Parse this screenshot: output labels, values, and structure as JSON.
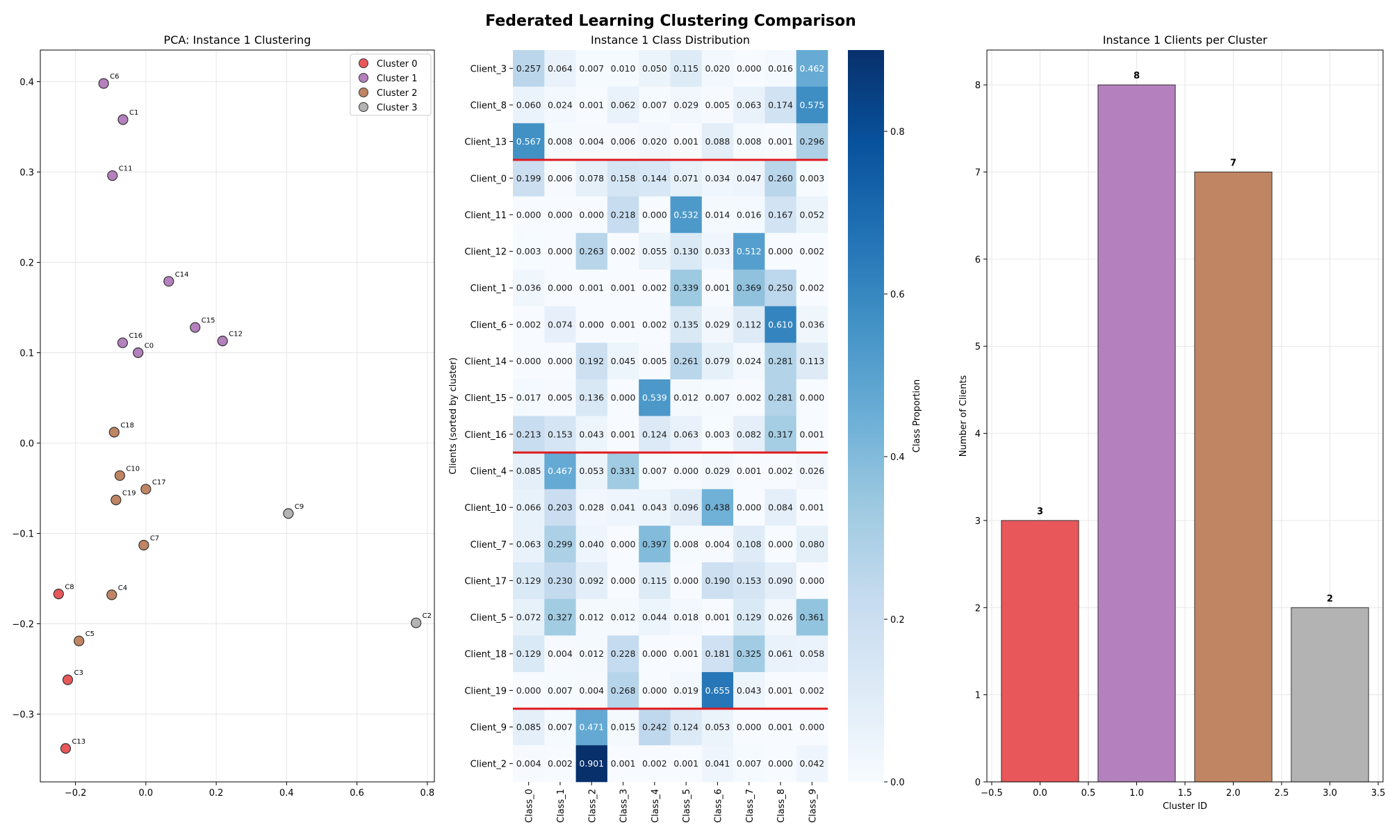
{
  "figure_title": "Federated Learning Clustering Comparison",
  "cluster_colors": [
    "#e8575a",
    "#b480bd",
    "#c08562",
    "#b3b3b3"
  ],
  "chart_data": [
    {
      "type": "scatter",
      "title": "PCA: Instance 1 Clustering",
      "xlabel": "",
      "ylabel": "",
      "xlim": [
        -0.3,
        0.82
      ],
      "ylim": [
        -0.375,
        0.435
      ],
      "xticks": [
        -0.2,
        0.0,
        0.2,
        0.4,
        0.6,
        0.8
      ],
      "xtick_labels": [
        "−0.2",
        "0.0",
        "0.2",
        "0.4",
        "0.6",
        "0.8"
      ],
      "yticks": [
        -0.3,
        -0.2,
        -0.1,
        0.0,
        0.1,
        0.2,
        0.3,
        0.4
      ],
      "ytick_labels": [
        "−0.3",
        "−0.2",
        "−0.1",
        "0.0",
        "0.1",
        "0.2",
        "0.3",
        "0.4"
      ],
      "grid": true,
      "legend": {
        "position": "top-right",
        "entries": [
          "Cluster 0",
          "Cluster 1",
          "Cluster 2",
          "Cluster 3"
        ]
      },
      "points": [
        {
          "label": "C6",
          "x": -0.12,
          "y": 0.398,
          "cluster": 1
        },
        {
          "label": "C1",
          "x": -0.065,
          "y": 0.358,
          "cluster": 1
        },
        {
          "label": "C11",
          "x": -0.095,
          "y": 0.296,
          "cluster": 1
        },
        {
          "label": "C14",
          "x": 0.065,
          "y": 0.179,
          "cluster": 1
        },
        {
          "label": "C15",
          "x": 0.14,
          "y": 0.128,
          "cluster": 1
        },
        {
          "label": "C12",
          "x": 0.218,
          "y": 0.113,
          "cluster": 1
        },
        {
          "label": "C16",
          "x": -0.066,
          "y": 0.111,
          "cluster": 1
        },
        {
          "label": "C0",
          "x": -0.022,
          "y": 0.1,
          "cluster": 1
        },
        {
          "label": "C18",
          "x": -0.09,
          "y": 0.012,
          "cluster": 2
        },
        {
          "label": "C10",
          "x": -0.074,
          "y": -0.036,
          "cluster": 2
        },
        {
          "label": "C17",
          "x": 0.0,
          "y": -0.051,
          "cluster": 2
        },
        {
          "label": "C19",
          "x": -0.085,
          "y": -0.063,
          "cluster": 2
        },
        {
          "label": "C7",
          "x": -0.006,
          "y": -0.113,
          "cluster": 2
        },
        {
          "label": "C4",
          "x": -0.097,
          "y": -0.168,
          "cluster": 2
        },
        {
          "label": "C5",
          "x": -0.19,
          "y": -0.219,
          "cluster": 2
        },
        {
          "label": "C9",
          "x": 0.405,
          "y": -0.078,
          "cluster": 3
        },
        {
          "label": "C2",
          "x": 0.768,
          "y": -0.199,
          "cluster": 3
        },
        {
          "label": "C8",
          "x": -0.248,
          "y": -0.167,
          "cluster": 0
        },
        {
          "label": "C3",
          "x": -0.222,
          "y": -0.262,
          "cluster": 0
        },
        {
          "label": "C13",
          "x": -0.228,
          "y": -0.338,
          "cluster": 0
        }
      ]
    },
    {
      "type": "heatmap",
      "title": "Instance 1 Class Distribution",
      "xlabel": "",
      "ylabel": "Clients (sorted by cluster)",
      "colorbar_label": "Class Proportion",
      "colorbar_range": [
        0.0,
        0.9
      ],
      "colorbar_ticks": [
        "0.0",
        "0.2",
        "0.4",
        "0.6",
        "0.8"
      ],
      "columns": [
        "Class_0",
        "Class_1",
        "Class_2",
        "Class_3",
        "Class_4",
        "Class_5",
        "Class_6",
        "Class_7",
        "Class_8",
        "Class_9"
      ],
      "rows": [
        "Client_3",
        "Client_8",
        "Client_13",
        "Client_0",
        "Client_11",
        "Client_12",
        "Client_1",
        "Client_6",
        "Client_14",
        "Client_15",
        "Client_16",
        "Client_4",
        "Client_10",
        "Client_7",
        "Client_17",
        "Client_5",
        "Client_18",
        "Client_19",
        "Client_9",
        "Client_2"
      ],
      "cluster_boundaries_after_row": [
        3,
        11,
        18
      ],
      "values": [
        [
          "0.257",
          "0.064",
          "0.007",
          "0.010",
          "0.050",
          "0.115",
          "0.020",
          "0.000",
          "0.016",
          "0.462"
        ],
        [
          "0.060",
          "0.024",
          "0.001",
          "0.062",
          "0.007",
          "0.029",
          "0.005",
          "0.063",
          "0.174",
          "0.575"
        ],
        [
          "0.567",
          "0.008",
          "0.004",
          "0.006",
          "0.020",
          "0.001",
          "0.088",
          "0.008",
          "0.001",
          "0.296"
        ],
        [
          "0.199",
          "0.006",
          "0.078",
          "0.158",
          "0.144",
          "0.071",
          "0.034",
          "0.047",
          "0.260",
          "0.003"
        ],
        [
          "0.000",
          "0.000",
          "0.000",
          "0.218",
          "0.000",
          "0.532",
          "0.014",
          "0.016",
          "0.167",
          "0.052"
        ],
        [
          "0.003",
          "0.000",
          "0.263",
          "0.002",
          "0.055",
          "0.130",
          "0.033",
          "0.512",
          "0.000",
          "0.002"
        ],
        [
          "0.036",
          "0.000",
          "0.001",
          "0.001",
          "0.002",
          "0.339",
          "0.001",
          "0.369",
          "0.250",
          "0.002"
        ],
        [
          "0.002",
          "0.074",
          "0.000",
          "0.001",
          "0.002",
          "0.135",
          "0.029",
          "0.112",
          "0.610",
          "0.036"
        ],
        [
          "0.000",
          "0.000",
          "0.192",
          "0.045",
          "0.005",
          "0.261",
          "0.079",
          "0.024",
          "0.281",
          "0.113"
        ],
        [
          "0.017",
          "0.005",
          "0.136",
          "0.000",
          "0.539",
          "0.012",
          "0.007",
          "0.002",
          "0.281",
          "0.000"
        ],
        [
          "0.213",
          "0.153",
          "0.043",
          "0.001",
          "0.124",
          "0.063",
          "0.003",
          "0.082",
          "0.317",
          "0.001"
        ],
        [
          "0.085",
          "0.467",
          "0.053",
          "0.331",
          "0.007",
          "0.000",
          "0.029",
          "0.001",
          "0.002",
          "0.026"
        ],
        [
          "0.066",
          "0.203",
          "0.028",
          "0.041",
          "0.043",
          "0.096",
          "0.438",
          "0.000",
          "0.084",
          "0.001"
        ],
        [
          "0.063",
          "0.299",
          "0.040",
          "0.000",
          "0.397",
          "0.008",
          "0.004",
          "0.108",
          "0.000",
          "0.080"
        ],
        [
          "0.129",
          "0.230",
          "0.092",
          "0.000",
          "0.115",
          "0.000",
          "0.190",
          "0.153",
          "0.090",
          "0.000"
        ],
        [
          "0.072",
          "0.327",
          "0.012",
          "0.012",
          "0.044",
          "0.018",
          "0.001",
          "0.129",
          "0.026",
          "0.361"
        ],
        [
          "0.129",
          "0.004",
          "0.012",
          "0.228",
          "0.000",
          "0.001",
          "0.181",
          "0.325",
          "0.061",
          "0.058"
        ],
        [
          "0.000",
          "0.007",
          "0.004",
          "0.268",
          "0.000",
          "0.019",
          "0.655",
          "0.043",
          "0.001",
          "0.002"
        ],
        [
          "0.085",
          "0.007",
          "0.471",
          "0.015",
          "0.242",
          "0.124",
          "0.053",
          "0.000",
          "0.001",
          "0.000"
        ],
        [
          "0.004",
          "0.002",
          "0.901",
          "0.001",
          "0.002",
          "0.001",
          "0.041",
          "0.007",
          "0.000",
          "0.042"
        ]
      ]
    },
    {
      "type": "bar",
      "title": "Instance 1 Clients per Cluster",
      "xlabel": "Cluster ID",
      "ylabel": "Number of Clients",
      "categories": [
        0,
        1,
        2,
        3
      ],
      "values": [
        3,
        8,
        7,
        2
      ],
      "value_labels": [
        "3",
        "8",
        "7",
        "2"
      ],
      "xlim": [
        -0.55,
        3.55
      ],
      "ylim": [
        0,
        8.4
      ],
      "xticks": [
        -0.5,
        0.0,
        0.5,
        1.0,
        1.5,
        2.0,
        2.5,
        3.0,
        3.5
      ],
      "xtick_labels": [
        "−0.5",
        "0.0",
        "0.5",
        "1.0",
        "1.5",
        "2.0",
        "2.5",
        "3.0",
        "3.5"
      ],
      "yticks": [
        0,
        1,
        2,
        3,
        4,
        5,
        6,
        7,
        8
      ],
      "ytick_labels": [
        "0",
        "1",
        "2",
        "3",
        "4",
        "5",
        "6",
        "7",
        "8"
      ],
      "grid": true
    }
  ]
}
